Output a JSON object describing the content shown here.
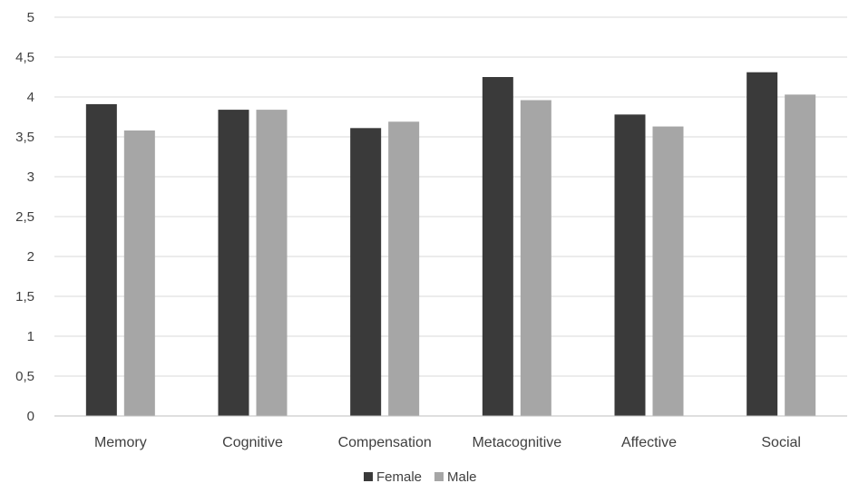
{
  "chart_data": {
    "type": "bar",
    "categories": [
      "Memory",
      "Cognitive",
      "Compensation",
      "Metacognitive",
      "Affective",
      "Social"
    ],
    "series": [
      {
        "name": "Female",
        "color": "#3a3a3a",
        "values": [
          3.91,
          3.84,
          3.61,
          4.25,
          3.78,
          4.31
        ]
      },
      {
        "name": "Male",
        "color": "#a6a6a6",
        "values": [
          3.58,
          3.84,
          3.69,
          3.96,
          3.63,
          4.03
        ]
      }
    ],
    "yticks": [
      "0",
      "0,5",
      "1",
      "1,5",
      "2",
      "2,5",
      "3",
      "3,5",
      "4",
      "4,5",
      "5"
    ],
    "ylim": [
      0,
      5
    ],
    "grid": true,
    "legend_position": "bottom-center",
    "title": "",
    "xlabel": "",
    "ylabel": ""
  }
}
